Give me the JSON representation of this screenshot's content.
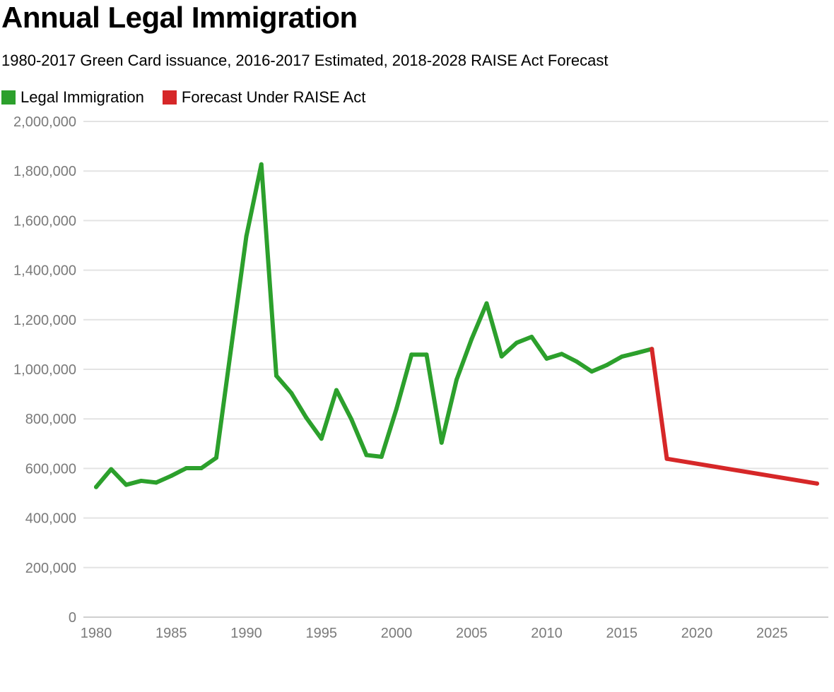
{
  "chart_data": {
    "type": "line",
    "title": "Annual Legal Immigration",
    "subtitle": "1980-2017 Green Card issuance, 2016-2017 Estimated, 2018-2028 RAISE Act Forecast",
    "xlabel": "",
    "ylabel": "",
    "xlim": [
      1980,
      2028
    ],
    "ylim": [
      0,
      2000000
    ],
    "x_ticks": [
      1980,
      1985,
      1990,
      1995,
      2000,
      2005,
      2010,
      2015,
      2020,
      2025
    ],
    "y_ticks": [
      0,
      200000,
      400000,
      600000,
      800000,
      1000000,
      1200000,
      1400000,
      1600000,
      1800000,
      2000000
    ],
    "y_tick_labels": [
      "0",
      "200,000",
      "400,000",
      "600,000",
      "800,000",
      "1,000,000",
      "1,200,000",
      "1,400,000",
      "1,600,000",
      "1,800,000",
      "2,000,000"
    ],
    "grid": true,
    "legend_position": "top-left",
    "series": [
      {
        "name": "Legal Immigration",
        "color": "#2ca02c",
        "x": [
          1980,
          1981,
          1982,
          1983,
          1984,
          1985,
          1986,
          1987,
          1988,
          1989,
          1990,
          1991,
          1992,
          1993,
          1994,
          1995,
          1996,
          1997,
          1998,
          1999,
          2000,
          2001,
          2002,
          2003,
          2004,
          2005,
          2006,
          2007,
          2008,
          2009,
          2010,
          2011,
          2012,
          2013,
          2014,
          2015,
          2016,
          2017
        ],
        "values": [
          525000,
          597000,
          534000,
          550000,
          543000,
          570000,
          601000,
          601000,
          643000,
          1091000,
          1536000,
          1827000,
          974000,
          904000,
          804000,
          720000,
          916000,
          798000,
          654000,
          647000,
          841000,
          1059000,
          1059000,
          704000,
          958000,
          1122000,
          1266000,
          1052000,
          1107000,
          1131000,
          1043000,
          1062000,
          1031000,
          991000,
          1017000,
          1051000,
          1066000,
          1082000
        ]
      },
      {
        "name": "Forecast Under RAISE Act",
        "color": "#d62728",
        "x": [
          2017,
          2018,
          2028
        ],
        "values": [
          1082000,
          639000,
          539000
        ]
      }
    ]
  }
}
